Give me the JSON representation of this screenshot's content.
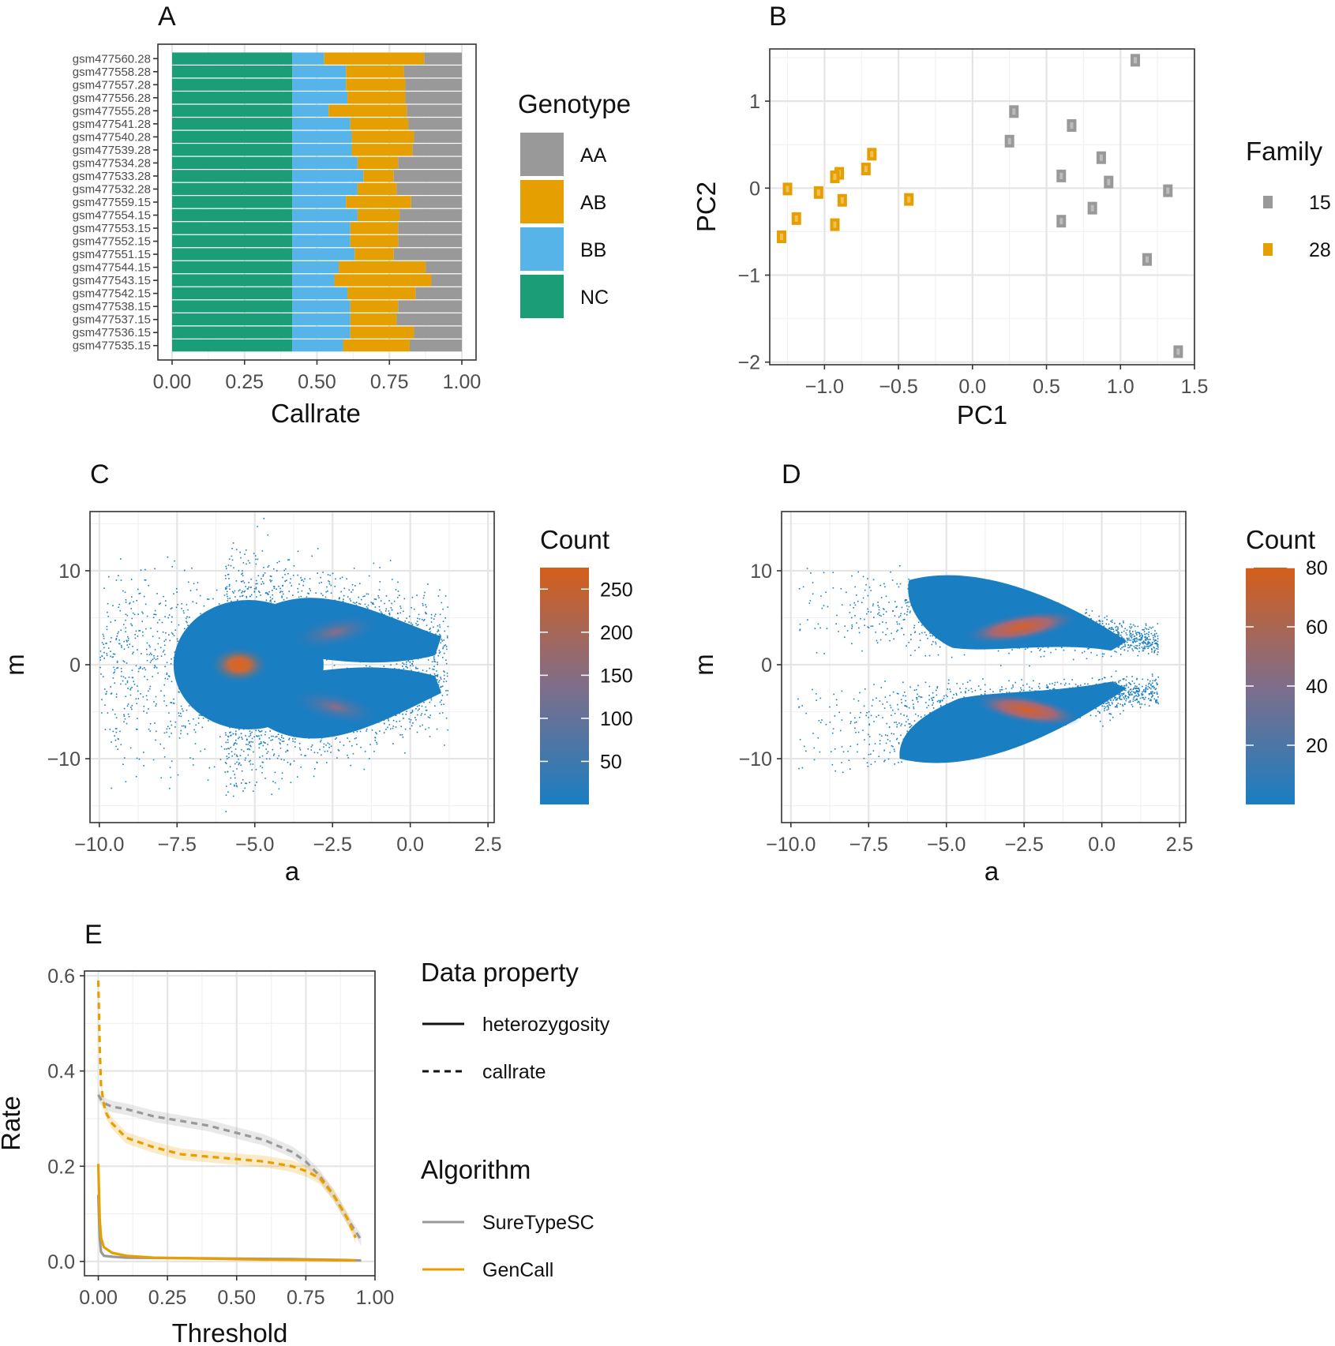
{
  "panels": {
    "A": {
      "letter": "A"
    },
    "B": {
      "letter": "B"
    },
    "C": {
      "letter": "C"
    },
    "D": {
      "letter": "D"
    },
    "E": {
      "letter": "E"
    }
  },
  "colors": {
    "AA": "#999999",
    "AB": "#E69F00",
    "BB": "#56B4E9",
    "NC": "#1B9E77",
    "blue": "#1A7EC2",
    "orange": "#D55E1A"
  },
  "chart_data": [
    {
      "type": "bar",
      "orientation": "horizontal-stacked",
      "xlabel": "Callrate",
      "ylabel": "",
      "xlim": [
        0,
        1
      ],
      "xticks": [
        "0.00",
        "0.25",
        "0.50",
        "0.75",
        "1.00"
      ],
      "legend": {
        "title": "Genotype",
        "entries": [
          "AA",
          "AB",
          "BB",
          "NC"
        ]
      },
      "categories": [
        "gsm477560.28",
        "gsm477558.28",
        "gsm477557.28",
        "gsm477556.28",
        "gsm477555.28",
        "gsm477541.28",
        "gsm477540.28",
        "gsm477539.28",
        "gsm477534.28",
        "gsm477533.28",
        "gsm477532.28",
        "gsm477559.15",
        "gsm477554.15",
        "gsm477553.15",
        "gsm477552.15",
        "gsm477551.15",
        "gsm477544.15",
        "gsm477543.15",
        "gsm477542.15",
        "gsm477538.15",
        "gsm477537.15",
        "gsm477536.15",
        "gsm477535.15"
      ],
      "series": [
        {
          "name": "NC",
          "values": [
            0.415,
            0.415,
            0.415,
            0.415,
            0.415,
            0.415,
            0.415,
            0.415,
            0.415,
            0.415,
            0.415,
            0.415,
            0.415,
            0.415,
            0.415,
            0.415,
            0.415,
            0.415,
            0.415,
            0.415,
            0.415,
            0.415,
            0.415
          ]
        },
        {
          "name": "BB",
          "values": [
            0.11,
            0.185,
            0.185,
            0.19,
            0.125,
            0.2,
            0.205,
            0.205,
            0.225,
            0.245,
            0.225,
            0.185,
            0.225,
            0.2,
            0.2,
            0.215,
            0.16,
            0.145,
            0.19,
            0.2,
            0.2,
            0.2,
            0.175
          ]
        },
        {
          "name": "AB",
          "values": [
            0.345,
            0.2,
            0.205,
            0.2,
            0.27,
            0.2,
            0.215,
            0.21,
            0.14,
            0.105,
            0.135,
            0.225,
            0.145,
            0.165,
            0.165,
            0.135,
            0.3,
            0.335,
            0.235,
            0.165,
            0.16,
            0.22,
            0.23
          ]
        },
        {
          "name": "AA",
          "values": [
            0.13,
            0.2,
            0.195,
            0.195,
            0.19,
            0.185,
            0.165,
            0.17,
            0.22,
            0.235,
            0.225,
            0.175,
            0.215,
            0.22,
            0.22,
            0.235,
            0.125,
            0.105,
            0.16,
            0.22,
            0.225,
            0.165,
            0.18
          ]
        }
      ]
    },
    {
      "type": "scatter",
      "xlabel": "PC1",
      "ylabel": "PC2",
      "xlim": [
        -1.37,
        1.5
      ],
      "ylim": [
        -2.03,
        1.6
      ],
      "xticks": [
        "−1.0",
        "−0.5",
        "0.0",
        "0.5",
        "1.0",
        "1.5"
      ],
      "yticks": [
        "1",
        "0",
        "−1",
        "−2"
      ],
      "legend": {
        "title": "Family",
        "entries": [
          "15",
          "28"
        ]
      },
      "series": [
        {
          "name": "15",
          "points": [
            [
              1.1,
              1.47
            ],
            [
              0.28,
              0.88
            ],
            [
              0.67,
              0.72
            ],
            [
              0.25,
              0.54
            ],
            [
              0.87,
              0.35
            ],
            [
              0.6,
              0.14
            ],
            [
              0.92,
              0.07
            ],
            [
              1.32,
              -0.03
            ],
            [
              0.81,
              -0.23
            ],
            [
              0.6,
              -0.38
            ],
            [
              1.18,
              -0.82
            ],
            [
              1.39,
              -1.88
            ]
          ]
        },
        {
          "name": "28",
          "points": [
            [
              -0.68,
              0.39
            ],
            [
              -0.72,
              0.22
            ],
            [
              -0.9,
              0.17
            ],
            [
              -0.93,
              0.13
            ],
            [
              -1.25,
              -0.01
            ],
            [
              -1.04,
              -0.05
            ],
            [
              -0.88,
              -0.14
            ],
            [
              -0.43,
              -0.13
            ],
            [
              -1.19,
              -0.35
            ],
            [
              -0.93,
              -0.42
            ],
            [
              -1.29,
              -0.56
            ]
          ]
        }
      ]
    },
    {
      "type": "heatmap",
      "xlabel": "a",
      "ylabel": "m",
      "xlim": [
        -10.3,
        2.7
      ],
      "ylim": [
        -16.8,
        16.3
      ],
      "xticks": [
        "−10.0",
        "−7.5",
        "−5.0",
        "−2.5",
        "0.0",
        "2.5"
      ],
      "yticks": [
        "10",
        "0",
        "−10"
      ],
      "legend": {
        "title": "Count",
        "entries": [
          "250",
          "200",
          "150",
          "100",
          "50"
        ]
      },
      "count_range": [
        0,
        275
      ],
      "density_peaks": [
        {
          "a": -5.5,
          "m": 0,
          "count": 250
        },
        {
          "a": -2.3,
          "m": 3.5,
          "count": 120
        },
        {
          "a": -2.3,
          "m": -4.5,
          "count": 120
        }
      ]
    },
    {
      "type": "heatmap",
      "xlabel": "a",
      "ylabel": "m",
      "xlim": [
        -10.3,
        2.7
      ],
      "ylim": [
        -16.8,
        16.3
      ],
      "xticks": [
        "−10.0",
        "−7.5",
        "−5.0",
        "−2.5",
        "0.0",
        "2.5"
      ],
      "yticks": [
        "10",
        "0",
        "−10"
      ],
      "legend": {
        "title": "Count",
        "entries": [
          "80",
          "60",
          "40",
          "20"
        ]
      },
      "count_range": [
        0,
        80
      ],
      "density_peaks": [
        {
          "a": -2.5,
          "m": 4,
          "count": 80
        },
        {
          "a": -2.5,
          "m": -5,
          "count": 80
        }
      ]
    },
    {
      "type": "line",
      "xlabel": "Threshold",
      "ylabel": "Rate",
      "xlim": [
        -0.05,
        1.0
      ],
      "ylim": [
        -0.03,
        0.61
      ],
      "xticks": [
        "0.00",
        "0.25",
        "0.50",
        "0.75",
        "1.00"
      ],
      "yticks": [
        "0.6",
        "0.4",
        "0.2",
        "0.0"
      ],
      "legend": [
        {
          "title": "Data property",
          "entries": [
            "heterozygosity",
            "callrate"
          ]
        },
        {
          "title": "Algorithm",
          "entries": [
            "SureTypeSC",
            "GenCall"
          ]
        }
      ],
      "series": [
        {
          "name": "SureTypeSC",
          "property": "callrate",
          "x": [
            0.0,
            0.01,
            0.03,
            0.05,
            0.1,
            0.2,
            0.3,
            0.4,
            0.5,
            0.6,
            0.7,
            0.75,
            0.8,
            0.85,
            0.9,
            0.95
          ],
          "y": [
            0.35,
            0.34,
            0.33,
            0.325,
            0.32,
            0.305,
            0.295,
            0.285,
            0.27,
            0.255,
            0.23,
            0.21,
            0.18,
            0.14,
            0.09,
            0.045
          ]
        },
        {
          "name": "GenCall",
          "property": "callrate",
          "x": [
            0.0,
            0.005,
            0.01,
            0.02,
            0.03,
            0.05,
            0.1,
            0.2,
            0.3,
            0.4,
            0.5,
            0.6,
            0.7,
            0.75,
            0.8,
            0.85,
            0.9,
            0.93
          ],
          "y": [
            0.59,
            0.45,
            0.37,
            0.33,
            0.31,
            0.29,
            0.26,
            0.24,
            0.225,
            0.22,
            0.215,
            0.21,
            0.2,
            0.19,
            0.175,
            0.14,
            0.09,
            0.05
          ]
        },
        {
          "name": "SureTypeSC",
          "property": "heterozygosity",
          "x": [
            0.0,
            0.005,
            0.01,
            0.02,
            0.05,
            0.1,
            0.3,
            0.5,
            0.7,
            0.9,
            0.95
          ],
          "y": [
            0.14,
            0.05,
            0.02,
            0.012,
            0.01,
            0.008,
            0.007,
            0.006,
            0.005,
            0.003,
            0.002
          ]
        },
        {
          "name": "GenCall",
          "property": "heterozygosity",
          "x": [
            0.0,
            0.005,
            0.01,
            0.02,
            0.05,
            0.1,
            0.2,
            0.4,
            0.6,
            0.8,
            0.93
          ],
          "y": [
            0.205,
            0.09,
            0.05,
            0.03,
            0.018,
            0.012,
            0.008,
            0.006,
            0.004,
            0.003,
            0.002
          ]
        }
      ]
    }
  ]
}
